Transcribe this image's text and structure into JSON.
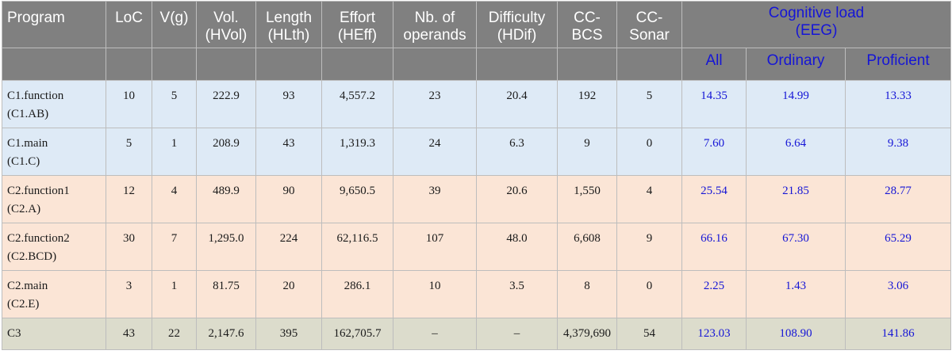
{
  "headers": {
    "program": "Program",
    "loc": "LoC",
    "vg": "V(g)",
    "vol": "Vol.\n(HVol)",
    "length": "Length\n(HLth)",
    "effort": "Effort\n(HEff)",
    "operands": "Nb. of\noperands",
    "difficulty": "Difficulty\n(HDif)",
    "ccbcs": "CC-\nBCS",
    "ccsonar": "CC-\nSonar",
    "cognitive": "Cognitive load\n(EEG)",
    "sub": {
      "all": "All",
      "ordinary": "Ordinary",
      "proficient": "Proficient"
    }
  },
  "rows": [
    {
      "program": "C1.function\n(C1.AB)",
      "loc": "10",
      "vg": "5",
      "vol": "222.9",
      "length": "93",
      "effort": "4,557.2",
      "operands": "23",
      "difficulty": "20.4",
      "ccbcs": "192",
      "ccsonar": "5",
      "all": "14.35",
      "ordinary": "14.99",
      "proficient": "13.33"
    },
    {
      "program": "C1.main\n(C1.C)",
      "loc": "5",
      "vg": "1",
      "vol": "208.9",
      "length": "43",
      "effort": "1,319.3",
      "operands": "24",
      "difficulty": "6.3",
      "ccbcs": "9",
      "ccsonar": "0",
      "all": "7.60",
      "ordinary": "6.64",
      "proficient": "9.38"
    },
    {
      "program": "C2.function1\n(C2.A)",
      "loc": "12",
      "vg": "4",
      "vol": "489.9",
      "length": "90",
      "effort": "9,650.5",
      "operands": "39",
      "difficulty": "20.6",
      "ccbcs": "1,550",
      "ccsonar": "4",
      "all": "25.54",
      "ordinary": "21.85",
      "proficient": "28.77"
    },
    {
      "program": "C2.function2\n(C2.BCD)",
      "loc": "30",
      "vg": "7",
      "vol": "1,295.0",
      "length": "224",
      "effort": "62,116.5",
      "operands": "107",
      "difficulty": "48.0",
      "ccbcs": "6,608",
      "ccsonar": "9",
      "all": "66.16",
      "ordinary": "67.30",
      "proficient": "65.29"
    },
    {
      "program": "C2.main\n(C2.E)",
      "loc": "3",
      "vg": "1",
      "vol": "81.75",
      "length": "20",
      "effort": "286.1",
      "operands": "10",
      "difficulty": "3.5",
      "ccbcs": "8",
      "ccsonar": "0",
      "all": "2.25",
      "ordinary": "1.43",
      "proficient": "3.06"
    },
    {
      "program": "C3",
      "loc": "43",
      "vg": "22",
      "vol": "2,147.6",
      "length": "395",
      "effort": "162,705.7",
      "operands": "–",
      "difficulty": "–",
      "ccbcs": "4,379,690",
      "ccsonar": "54",
      "all": "123.03",
      "ordinary": "108.90",
      "proficient": "141.86"
    }
  ],
  "colors": {
    "header_bg": "#808080",
    "header_text": "#ffffff",
    "eeg_text": "#1515d6",
    "c1_rows": "#deeaf6",
    "c2_rows": "#fbe5d6",
    "c3_row": "#dcdccc"
  }
}
